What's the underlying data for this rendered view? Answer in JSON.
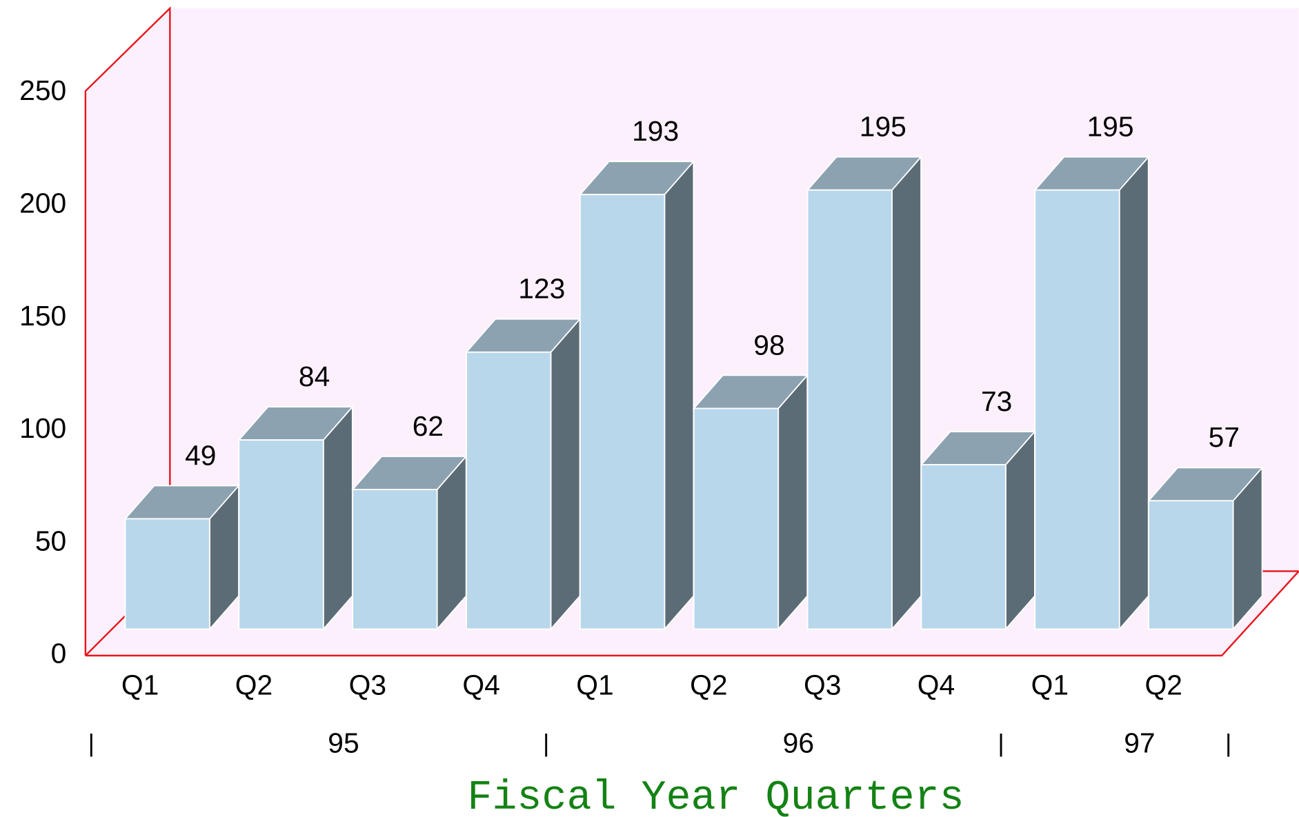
{
  "chart_data": {
    "type": "bar3d",
    "x_label": "Fiscal Year Quarters",
    "categories": [
      "Q1",
      "Q2",
      "Q3",
      "Q4",
      "Q1",
      "Q2",
      "Q3",
      "Q4",
      "Q1",
      "Q2"
    ],
    "category_groups": [
      "95",
      "95",
      "95",
      "95",
      "96",
      "96",
      "96",
      "96",
      "97",
      "97"
    ],
    "values": [
      49,
      84,
      62,
      123,
      193,
      98,
      195,
      73,
      195,
      57
    ],
    "ylim": [
      0,
      250
    ],
    "yticks": [
      0,
      50,
      100,
      150,
      200,
      250
    ],
    "colors": {
      "front": "#b9d7eb",
      "top": "#8ca2b1",
      "side": "#5c6c76",
      "wall": "#fdf0fd",
      "frame": "#e8141c",
      "x_label": "#148214"
    }
  }
}
